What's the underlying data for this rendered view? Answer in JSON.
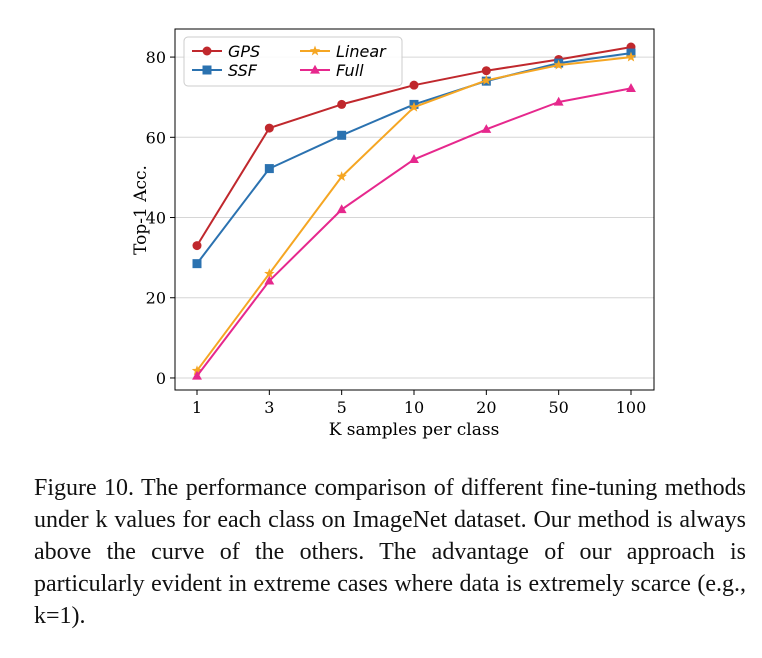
{
  "chart_data": {
    "type": "line",
    "categories": [
      "1",
      "3",
      "5",
      "10",
      "20",
      "50",
      "100"
    ],
    "xlabel": "K samples per class",
    "ylabel": "Top-1 Acc.",
    "ylim": [
      -3,
      87
    ],
    "yticks": [
      "0",
      "20",
      "40",
      "60",
      "80"
    ],
    "ytick_values": [
      0,
      20,
      40,
      60,
      80
    ],
    "grid": "horizontal",
    "legend_position": "top-left",
    "series": [
      {
        "name": "GPS",
        "color": "#c0282d",
        "marker": "circle",
        "values": [
          33,
          62.3,
          68.2,
          73,
          76.6,
          79.4,
          82.5
        ]
      },
      {
        "name": "SSF",
        "color": "#2b72b0",
        "marker": "square",
        "values": [
          28.5,
          52.2,
          60.5,
          68.2,
          74,
          78.5,
          81
        ]
      },
      {
        "name": "Linear",
        "color": "#f5a623",
        "marker": "star",
        "values": [
          1.8,
          26,
          50.2,
          67.5,
          74.2,
          78,
          80
        ]
      },
      {
        "name": "Full",
        "color": "#e6288d",
        "marker": "triangle",
        "values": [
          0.5,
          24.2,
          42,
          54.5,
          62,
          68.8,
          72.2
        ]
      }
    ]
  },
  "caption": "Figure 10.  The performance comparison of different fine-tuning methods under k values for each class on ImageNet dataset.  Our method is always above the curve of the others. The advantage of our approach is particularly evident in extreme cases where data is extremely scarce (e.g., k=1)."
}
